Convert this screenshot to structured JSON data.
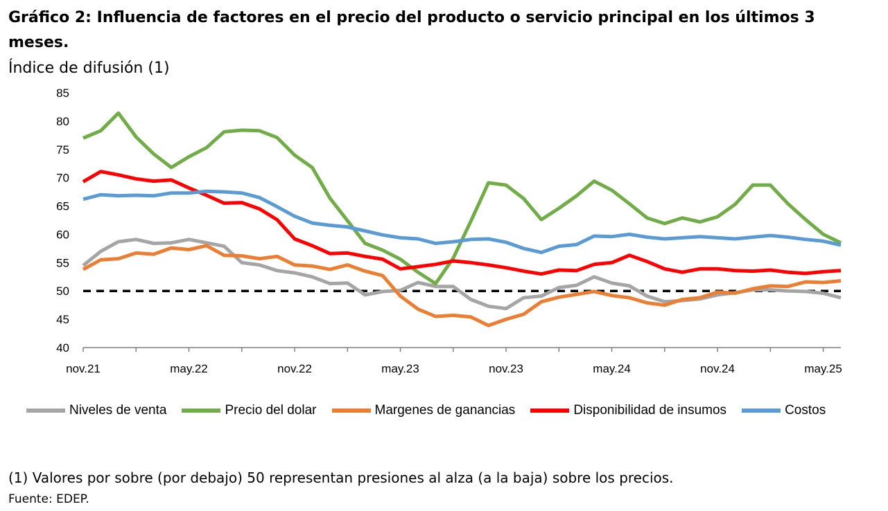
{
  "title": "Gráfico 2: Influencia de factores en el precio del producto o servicio principal en los últimos 3 meses.",
  "subtitle": "Índice de difusión (1)",
  "note": "(1) Valores por sobre (por debajo) 50 representan presiones al alza (a la baja) sobre los precios.",
  "source": "Fuente: EDEP.",
  "chart_data": {
    "type": "line",
    "title": "Gráfico 2: Influencia de factores en el precio del producto o servicio principal en los últimos 3 meses.",
    "ylabel": "Índice de difusión (1)",
    "ylim": [
      40,
      85
    ],
    "yticks": [
      40,
      45,
      50,
      55,
      60,
      65,
      70,
      75,
      80,
      85
    ],
    "grid": false,
    "legend": "bottom",
    "reference_line": {
      "y": 50,
      "style": "dashed",
      "color": "#000000"
    },
    "x": [
      "nov.21",
      "dic.21",
      "ene.22",
      "feb.22",
      "mar.22",
      "abr.22",
      "may.22",
      "jun.22",
      "jul.22",
      "ago.22",
      "sep.22",
      "oct.22",
      "nov.22",
      "dic.22",
      "ene.23",
      "feb.23",
      "mar.23",
      "abr.23",
      "may.23",
      "jun.23",
      "jul.23",
      "ago.23",
      "sep.23",
      "oct.23",
      "nov.23",
      "dic.23",
      "ene.24",
      "feb.24",
      "mar.24",
      "abr.24",
      "may.24",
      "jun.24",
      "jul.24",
      "ago.24",
      "sep.24",
      "oct.24",
      "nov.24",
      "dic.24",
      "ene.25",
      "feb.25",
      "mar.25",
      "abr.25",
      "may.25",
      "jun.25"
    ],
    "xtick_labels": [
      "nov.21",
      "may.22",
      "nov.22",
      "may.23",
      "nov.23",
      "may.24",
      "nov.24",
      "may.25"
    ],
    "series": [
      {
        "name": "Niveles de venta",
        "color": "#A5A5A5",
        "values": [
          54.5,
          57,
          58.7,
          59.1,
          58.4,
          58.5,
          59.1,
          58.5,
          57.9,
          55,
          54.6,
          53.6,
          53.2,
          52.5,
          51.3,
          51.4,
          49.3,
          49.9,
          50.1,
          51.5,
          50.8,
          50.8,
          48.5,
          47.3,
          46.9,
          48.8,
          49.1,
          50.6,
          51,
          52.5,
          51.4,
          50.9,
          49.1,
          48.1,
          48.3,
          48.6,
          49.3,
          49.7,
          50.2,
          50.2,
          50,
          49.9,
          49.6,
          48.8
        ]
      },
      {
        "name": "Precio del dolar",
        "color": "#70AD47",
        "values": [
          77,
          78.3,
          81.4,
          77.2,
          74.2,
          71.8,
          73.7,
          75.3,
          78.1,
          78.4,
          78.3,
          77.1,
          74,
          71.8,
          66.4,
          62.4,
          58.4,
          57.2,
          55.6,
          53.3,
          51.3,
          55.8,
          62.3,
          69.1,
          68.7,
          66.3,
          62.6,
          64.6,
          66.8,
          69.4,
          67.8,
          65.4,
          62.9,
          61.9,
          62.9,
          62.2,
          63.1,
          65.3,
          68.7,
          68.7,
          65.4,
          62.6,
          60,
          58.5
        ]
      },
      {
        "name": "Margenes de ganancias",
        "color": "#ED7D31",
        "values": [
          53.8,
          55.5,
          55.7,
          56.7,
          56.5,
          57.6,
          57.3,
          58,
          56.3,
          56.2,
          55.7,
          56.1,
          54.6,
          54.4,
          53.8,
          54.6,
          53.5,
          52.7,
          49.1,
          46.8,
          45.5,
          45.7,
          45.4,
          43.9,
          45,
          45.9,
          48.1,
          48.9,
          49.4,
          49.9,
          49.2,
          48.8,
          47.9,
          47.5,
          48.5,
          48.8,
          49.8,
          49.6,
          50.4,
          50.9,
          50.8,
          51.6,
          51.5,
          51.8
        ]
      },
      {
        "name": "Disponibilidad de insumos",
        "color": "#FF0000",
        "values": [
          69.3,
          71.1,
          70.5,
          69.8,
          69.4,
          69.6,
          68.2,
          66.9,
          65.5,
          65.6,
          64.5,
          62.6,
          59.2,
          58,
          56.6,
          56.7,
          56.1,
          55.6,
          53.9,
          54.3,
          54.7,
          55.3,
          55,
          54.6,
          54.1,
          53.5,
          53,
          53.7,
          53.6,
          54.7,
          55,
          56.3,
          55.2,
          53.9,
          53.3,
          53.9,
          53.9,
          53.6,
          53.5,
          53.7,
          53.3,
          53.1,
          53.4,
          53.6
        ]
      },
      {
        "name": "Costos",
        "color": "#5B9BD5",
        "values": [
          66.2,
          67,
          66.8,
          66.9,
          66.8,
          67.3,
          67.3,
          67.6,
          67.5,
          67.3,
          66.5,
          64.9,
          63.2,
          62,
          61.6,
          61.3,
          60.6,
          59.9,
          59.4,
          59.2,
          58.4,
          58.7,
          59.1,
          59.2,
          58.6,
          57.5,
          56.8,
          57.9,
          58.2,
          59.7,
          59.6,
          60,
          59.5,
          59.2,
          59.4,
          59.6,
          59.4,
          59.2,
          59.5,
          59.8,
          59.5,
          59.1,
          58.8,
          58.1
        ]
      }
    ]
  }
}
